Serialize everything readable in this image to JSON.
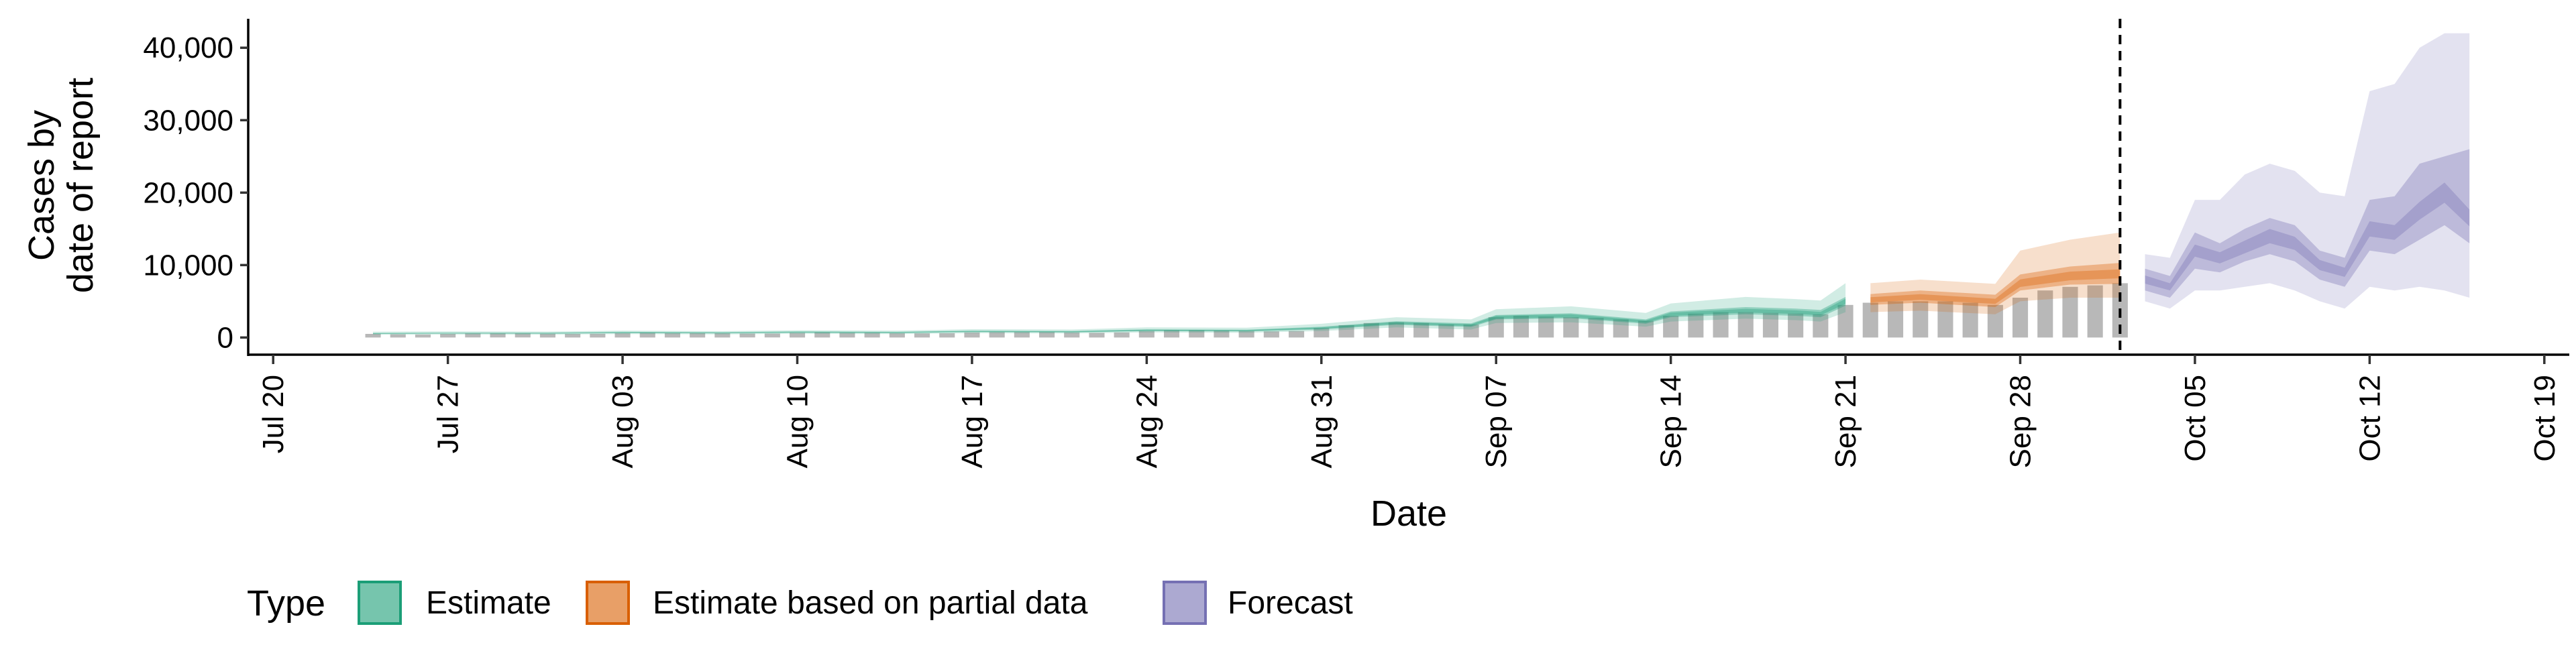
{
  "chart_data": {
    "type": "area",
    "xlabel": "Date",
    "ylabel_lines": [
      "Cases by",
      "date of report"
    ],
    "x_domain": [
      "2020-07-19",
      "2020-10-20"
    ],
    "x_ticks": [
      {
        "date": "2020-07-20",
        "label": "Jul 20"
      },
      {
        "date": "2020-07-27",
        "label": "Jul 27"
      },
      {
        "date": "2020-08-03",
        "label": "Aug 03"
      },
      {
        "date": "2020-08-10",
        "label": "Aug 10"
      },
      {
        "date": "2020-08-17",
        "label": "Aug 17"
      },
      {
        "date": "2020-08-24",
        "label": "Aug 24"
      },
      {
        "date": "2020-08-31",
        "label": "Aug 31"
      },
      {
        "date": "2020-09-07",
        "label": "Sep 07"
      },
      {
        "date": "2020-09-14",
        "label": "Sep 14"
      },
      {
        "date": "2020-09-21",
        "label": "Sep 21"
      },
      {
        "date": "2020-09-28",
        "label": "Sep 28"
      },
      {
        "date": "2020-10-05",
        "label": "Oct 05"
      },
      {
        "date": "2020-10-12",
        "label": "Oct 12"
      },
      {
        "date": "2020-10-19",
        "label": "Oct 19"
      }
    ],
    "ylim": [
      -2000,
      44000
    ],
    "y_ticks": [
      {
        "value": 0,
        "label": "0"
      },
      {
        "value": 10000,
        "label": "10,000"
      },
      {
        "value": 20000,
        "label": "20,000"
      },
      {
        "value": 30000,
        "label": "30,000"
      },
      {
        "value": 40000,
        "label": "40,000"
      }
    ],
    "forecast_cutoff_date": "2020-10-02",
    "bar_color": "#b8b8b8",
    "reported_cases": [
      {
        "date": "2020-07-24",
        "value": 500
      },
      {
        "date": "2020-07-25",
        "value": 450
      },
      {
        "date": "2020-07-26",
        "value": 420
      },
      {
        "date": "2020-07-27",
        "value": 500
      },
      {
        "date": "2020-07-28",
        "value": 550
      },
      {
        "date": "2020-07-29",
        "value": 550
      },
      {
        "date": "2020-07-30",
        "value": 550
      },
      {
        "date": "2020-07-31",
        "value": 520
      },
      {
        "date": "2020-08-01",
        "value": 500
      },
      {
        "date": "2020-08-02",
        "value": 520
      },
      {
        "date": "2020-08-03",
        "value": 600
      },
      {
        "date": "2020-08-04",
        "value": 650
      },
      {
        "date": "2020-08-05",
        "value": 600
      },
      {
        "date": "2020-08-06",
        "value": 600
      },
      {
        "date": "2020-08-07",
        "value": 580
      },
      {
        "date": "2020-08-08",
        "value": 550
      },
      {
        "date": "2020-08-09",
        "value": 550
      },
      {
        "date": "2020-08-10",
        "value": 650
      },
      {
        "date": "2020-08-11",
        "value": 700
      },
      {
        "date": "2020-08-12",
        "value": 650
      },
      {
        "date": "2020-08-13",
        "value": 650
      },
      {
        "date": "2020-08-14",
        "value": 600
      },
      {
        "date": "2020-08-15",
        "value": 580
      },
      {
        "date": "2020-08-16",
        "value": 600
      },
      {
        "date": "2020-08-17",
        "value": 700
      },
      {
        "date": "2020-08-18",
        "value": 750
      },
      {
        "date": "2020-08-19",
        "value": 750
      },
      {
        "date": "2020-08-20",
        "value": 750
      },
      {
        "date": "2020-08-21",
        "value": 700
      },
      {
        "date": "2020-08-22",
        "value": 650
      },
      {
        "date": "2020-08-23",
        "value": 700
      },
      {
        "date": "2020-08-24",
        "value": 900
      },
      {
        "date": "2020-08-25",
        "value": 1000
      },
      {
        "date": "2020-08-26",
        "value": 1000
      },
      {
        "date": "2020-08-27",
        "value": 950
      },
      {
        "date": "2020-08-28",
        "value": 900
      },
      {
        "date": "2020-08-29",
        "value": 850
      },
      {
        "date": "2020-08-30",
        "value": 900
      },
      {
        "date": "2020-08-31",
        "value": 1300
      },
      {
        "date": "2020-09-01",
        "value": 1700
      },
      {
        "date": "2020-09-02",
        "value": 2000
      },
      {
        "date": "2020-09-03",
        "value": 2100
      },
      {
        "date": "2020-09-04",
        "value": 2000
      },
      {
        "date": "2020-09-05",
        "value": 1800
      },
      {
        "date": "2020-09-06",
        "value": 1800
      },
      {
        "date": "2020-09-07",
        "value": 2800
      },
      {
        "date": "2020-09-08",
        "value": 3000
      },
      {
        "date": "2020-09-09",
        "value": 2900
      },
      {
        "date": "2020-09-10",
        "value": 2800
      },
      {
        "date": "2020-09-11",
        "value": 2700
      },
      {
        "date": "2020-09-12",
        "value": 2500
      },
      {
        "date": "2020-09-13",
        "value": 2300
      },
      {
        "date": "2020-09-14",
        "value": 3000
      },
      {
        "date": "2020-09-15",
        "value": 3300
      },
      {
        "date": "2020-09-16",
        "value": 3500
      },
      {
        "date": "2020-09-17",
        "value": 3500
      },
      {
        "date": "2020-09-18",
        "value": 3400
      },
      {
        "date": "2020-09-19",
        "value": 3300
      },
      {
        "date": "2020-09-20",
        "value": 3200
      },
      {
        "date": "2020-09-21",
        "value": 4500
      },
      {
        "date": "2020-09-22",
        "value": 4800
      },
      {
        "date": "2020-09-23",
        "value": 5000
      },
      {
        "date": "2020-09-24",
        "value": 5000
      },
      {
        "date": "2020-09-25",
        "value": 5000
      },
      {
        "date": "2020-09-26",
        "value": 4800
      },
      {
        "date": "2020-09-27",
        "value": 4500
      },
      {
        "date": "2020-09-28",
        "value": 5500
      },
      {
        "date": "2020-09-29",
        "value": 6500
      },
      {
        "date": "2020-09-30",
        "value": 7000
      },
      {
        "date": "2020-10-01",
        "value": 7200
      },
      {
        "date": "2020-10-02",
        "value": 7500
      }
    ],
    "series": [
      {
        "name": "Estimate",
        "color": "#1b9e77",
        "dates": [
          "2020-07-24",
          "2020-07-27",
          "2020-07-31",
          "2020-08-03",
          "2020-08-07",
          "2020-08-10",
          "2020-08-14",
          "2020-08-17",
          "2020-08-21",
          "2020-08-24",
          "2020-08-28",
          "2020-08-31",
          "2020-09-03",
          "2020-09-06",
          "2020-09-07",
          "2020-09-10",
          "2020-09-13",
          "2020-09-14",
          "2020-09-17",
          "2020-09-19",
          "2020-09-20",
          "2020-09-21"
        ],
        "median": [
          550,
          600,
          600,
          700,
          650,
          750,
          700,
          850,
          800,
          1000,
          950,
          1300,
          2000,
          1700,
          2800,
          3000,
          2200,
          3200,
          3700,
          3500,
          3300,
          5000
        ],
        "ci50": [
          [
            500,
            620
          ],
          [
            550,
            660
          ],
          [
            540,
            660
          ],
          [
            620,
            780
          ],
          [
            580,
            720
          ],
          [
            670,
            830
          ],
          [
            620,
            780
          ],
          [
            760,
            940
          ],
          [
            700,
            900
          ],
          [
            880,
            1120
          ],
          [
            830,
            1070
          ],
          [
            1100,
            1500
          ],
          [
            1750,
            2250
          ],
          [
            1450,
            1950
          ],
          [
            2500,
            3100
          ],
          [
            2650,
            3350
          ],
          [
            1900,
            2500
          ],
          [
            2800,
            3600
          ],
          [
            3200,
            4200
          ],
          [
            3000,
            4000
          ],
          [
            2800,
            3800
          ],
          [
            4400,
            5600
          ]
        ],
        "ci90": [
          [
            380,
            800
          ],
          [
            420,
            850
          ],
          [
            400,
            820
          ],
          [
            480,
            950
          ],
          [
            430,
            880
          ],
          [
            520,
            1000
          ],
          [
            470,
            950
          ],
          [
            600,
            1150
          ],
          [
            560,
            1100
          ],
          [
            700,
            1400
          ],
          [
            650,
            1350
          ],
          [
            900,
            1900
          ],
          [
            1400,
            2800
          ],
          [
            1100,
            2500
          ],
          [
            2000,
            3900
          ],
          [
            2100,
            4300
          ],
          [
            1500,
            3400
          ],
          [
            2200,
            4700
          ],
          [
            2600,
            5600
          ],
          [
            2400,
            5300
          ],
          [
            2200,
            5100
          ],
          [
            3500,
            7500
          ]
        ]
      },
      {
        "name": "Estimate based on partial data",
        "color": "#d95f02",
        "dates": [
          "2020-09-22",
          "2020-09-24",
          "2020-09-27",
          "2020-09-28",
          "2020-09-30",
          "2020-10-02"
        ],
        "median": [
          5200,
          5600,
          5000,
          7500,
          8500,
          8800
        ],
        "ci50": [
          [
            4500,
            6000
          ],
          [
            4800,
            6500
          ],
          [
            4200,
            5900
          ],
          [
            6500,
            8700
          ],
          [
            7300,
            9800
          ],
          [
            7400,
            10300
          ]
        ],
        "ci90": [
          [
            3500,
            7500
          ],
          [
            3700,
            8000
          ],
          [
            3200,
            7400
          ],
          [
            5000,
            12000
          ],
          [
            5500,
            13500
          ],
          [
            5500,
            14500
          ]
        ]
      },
      {
        "name": "Forecast",
        "color": "#7570b3",
        "dates": [
          "2020-10-03",
          "2020-10-04",
          "2020-10-05",
          "2020-10-06",
          "2020-10-07",
          "2020-10-08",
          "2020-10-09",
          "2020-10-10",
          "2020-10-11",
          "2020-10-12",
          "2020-10-13",
          "2020-10-14",
          "2020-10-15",
          "2020-10-16"
        ],
        "median": [
          8000,
          7000,
          12000,
          11000,
          12500,
          14000,
          13000,
          10000,
          9000,
          15000,
          14500,
          17500,
          20000,
          16500
        ],
        "ci50": [
          [
            6500,
            9500
          ],
          [
            5500,
            8500
          ],
          [
            9500,
            14500
          ],
          [
            9000,
            13000
          ],
          [
            10500,
            15000
          ],
          [
            11500,
            16500
          ],
          [
            10500,
            15500
          ],
          [
            8000,
            12000
          ],
          [
            7000,
            11000
          ],
          [
            12000,
            19000
          ],
          [
            11500,
            19500
          ],
          [
            13500,
            24000
          ],
          [
            15500,
            25000
          ],
          [
            13000,
            26000
          ]
        ],
        "ci90": [
          [
            5000,
            11500
          ],
          [
            4000,
            11000
          ],
          [
            6500,
            19000
          ],
          [
            6500,
            19000
          ],
          [
            7000,
            22500
          ],
          [
            7500,
            24000
          ],
          [
            6500,
            23000
          ],
          [
            5000,
            20000
          ],
          [
            4000,
            19500
          ],
          [
            7000,
            34000
          ],
          [
            6500,
            35000
          ],
          [
            7000,
            40000
          ],
          [
            6500,
            42000
          ],
          [
            5500,
            42000
          ]
        ]
      }
    ],
    "legend": {
      "title": "Type",
      "position": "bottom",
      "items": [
        "Estimate",
        "Estimate based on partial data",
        "Forecast"
      ]
    },
    "grid": false
  }
}
